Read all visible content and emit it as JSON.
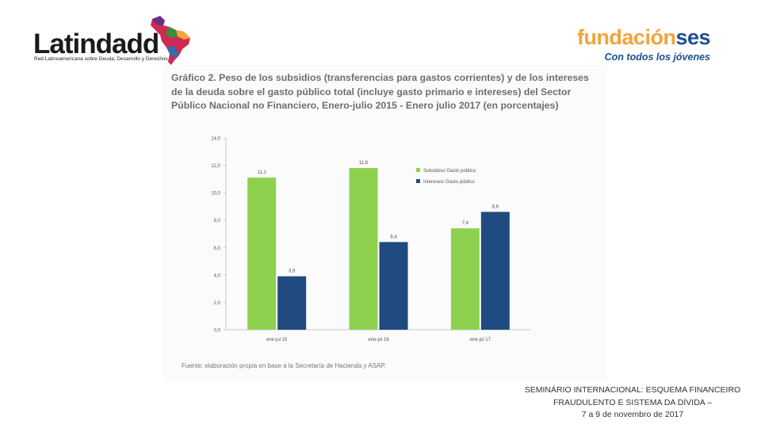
{
  "header": {
    "left_logo": {
      "name": "Latindadd",
      "subtitle": "Red Latinoamericana sobre Deuda, Desarrollo y Derechos"
    },
    "right_logo": {
      "name_part1": "fundación",
      "name_part2": "ses",
      "tagline": "Con todos los jóvenes"
    }
  },
  "figure": {
    "title_lines": [
      "Gráfico 2. Peso de los subsidios (transferencias para gastos corrientes) y de los intereses",
      "de la deuda sobre el gasto público total (incluye gasto primario e intereses) del Sector",
      "Público Nacional no Financiero, Enero-julio 2015 - Enero julio 2017 (en porcentajes)"
    ],
    "source": "Fuente: elaboración propia en base a la Secretaría de Hacienda y ASAP."
  },
  "chart_data": {
    "type": "bar",
    "title": "Gráfico 2. Peso de los subsidios (transferencias para gastos corrientes) y de los intereses de la deuda sobre el gasto público total (incluye gasto primario e intereses) del Sector Público Nacional no Financiero, Enero-julio 2015 - Enero julio 2017 (en porcentajes)",
    "categories": [
      "ene-jul 15",
      "ene-jul 16",
      "ene-jul 17"
    ],
    "series": [
      {
        "name": "Subsidios/ Gasto público",
        "values": [
          11.1,
          11.8,
          7.4
        ],
        "labels": [
          "11,1",
          "11,8",
          "7,4"
        ],
        "color": "#8ed14f"
      },
      {
        "name": "Intereses/ Gasto público",
        "values": [
          3.9,
          6.4,
          8.6
        ],
        "labels": [
          "3,9",
          "6,4",
          "8,6"
        ],
        "color": "#1f4b80"
      }
    ],
    "ylim": [
      0,
      14
    ],
    "yticks": [
      0,
      2,
      4,
      6,
      8,
      10,
      12,
      14
    ],
    "ytick_labels": [
      "0,0",
      "2,0",
      "4,0",
      "6,0",
      "8,0",
      "10,0",
      "12,0",
      "14,0"
    ],
    "xlabel": "",
    "ylabel": "",
    "legend_position": "right"
  },
  "footer": {
    "lines": [
      "SEMINÁRIO INTERNACIONAL: ESQUEMA FINANCEIRO",
      "FRAUDULENTO E SISTEMA DA DÍVIDA –",
      "7 a 9 de novembro de 2017"
    ]
  }
}
